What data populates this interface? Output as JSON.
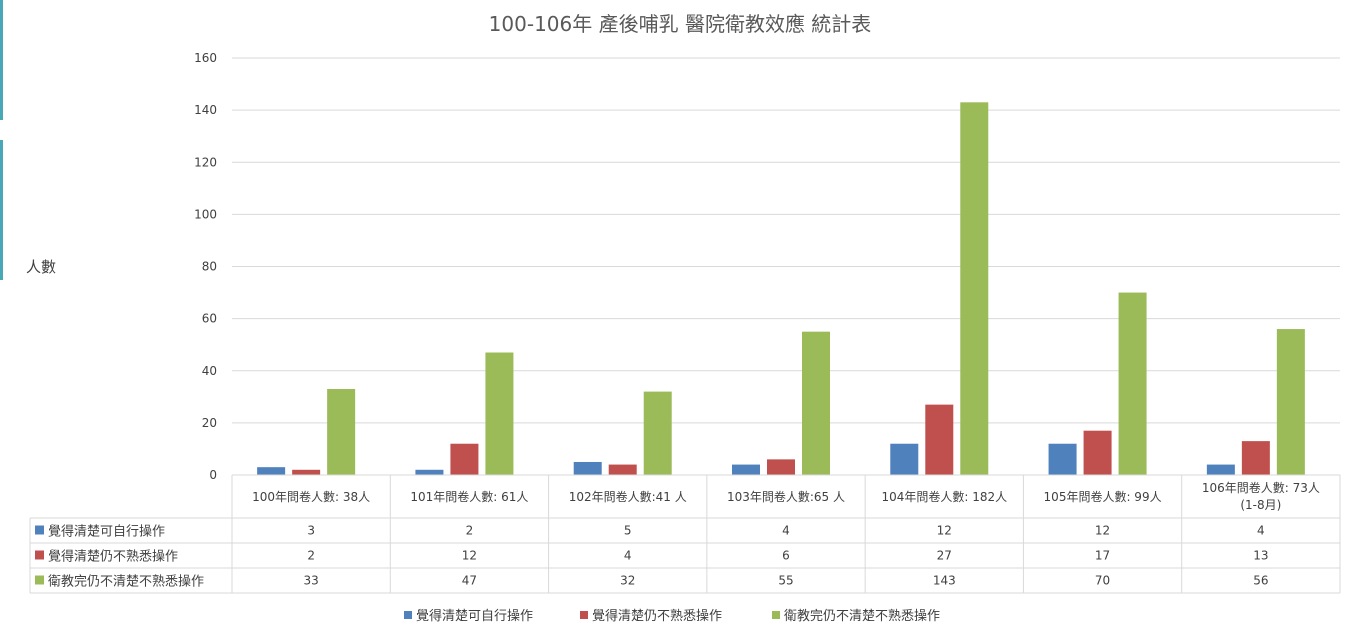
{
  "chart_data": {
    "type": "bar",
    "title": "100-106年 產後哺乳  醫院衛教效應   統計表",
    "ylabel": "人數",
    "ylim": [
      0,
      160
    ],
    "yticks": [
      0,
      20,
      40,
      60,
      80,
      100,
      120,
      140,
      160
    ],
    "grid": true,
    "legend_position": "bottom",
    "data_table": true,
    "categories": [
      [
        "100年問卷人數: 38人"
      ],
      [
        "101年問卷人數: 61人"
      ],
      [
        "102年問卷人數:41 人"
      ],
      [
        "103年問卷人數:65 人"
      ],
      [
        "104年問卷人數: 182人"
      ],
      [
        "105年問卷人數: 99人"
      ],
      [
        "106年問卷人數: 73人",
        "(1-8月)"
      ]
    ],
    "series": [
      {
        "name": "覺得清楚可自行操作",
        "color": "#4f81bd",
        "values": [
          3,
          2,
          5,
          4,
          12,
          12,
          4
        ]
      },
      {
        "name": "覺得清楚仍不熟悉操作",
        "color": "#c0504d",
        "values": [
          2,
          12,
          4,
          6,
          27,
          17,
          13
        ]
      },
      {
        "name": "衛教完仍不清楚不熟悉操作",
        "color": "#9bbb59",
        "values": [
          33,
          47,
          32,
          55,
          143,
          70,
          56
        ]
      }
    ]
  }
}
